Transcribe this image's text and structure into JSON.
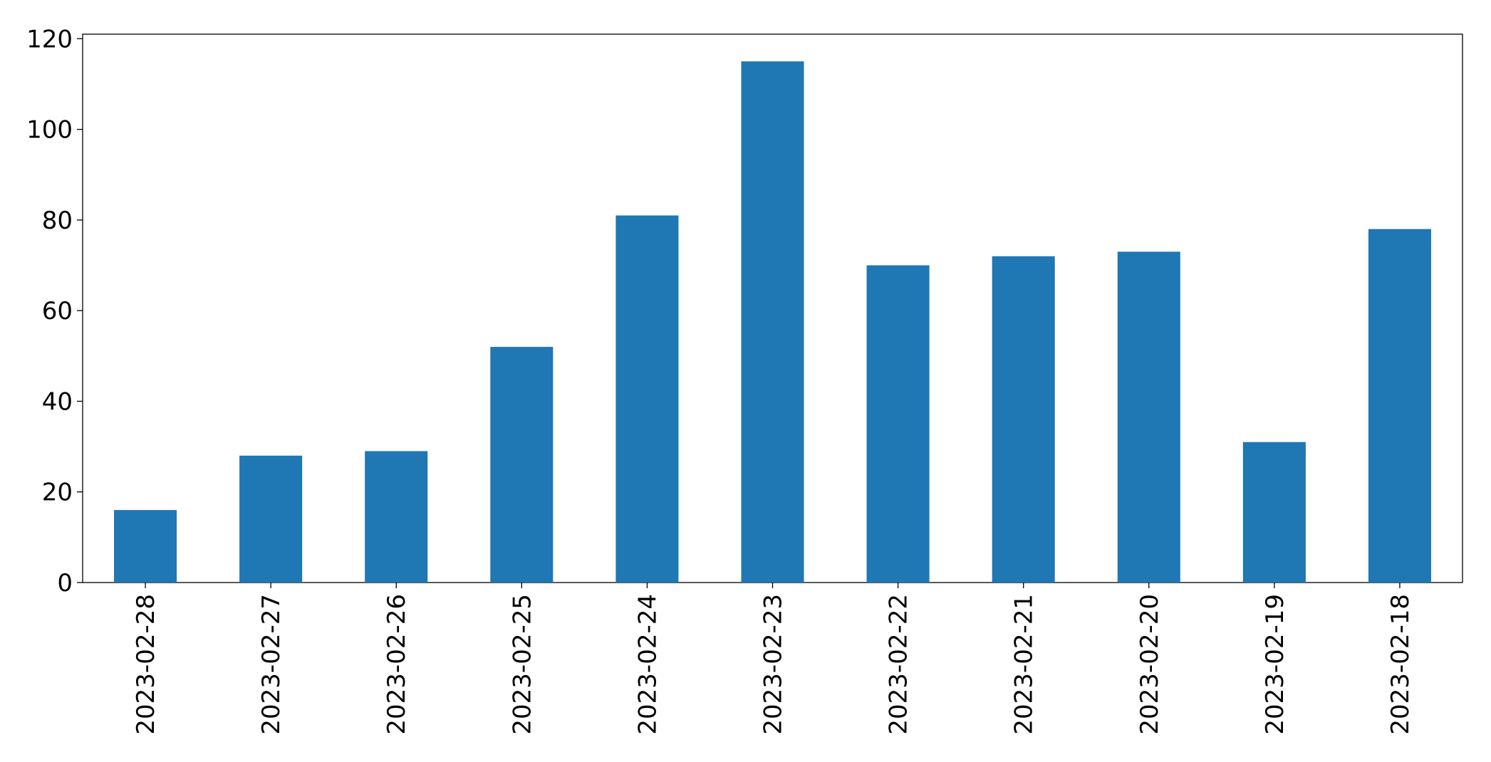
{
  "chart_data": {
    "type": "bar",
    "categories": [
      "2023-02-28",
      "2023-02-27",
      "2023-02-26",
      "2023-02-25",
      "2023-02-24",
      "2023-02-23",
      "2023-02-22",
      "2023-02-21",
      "2023-02-20",
      "2023-02-19",
      "2023-02-18"
    ],
    "values": [
      16,
      28,
      29,
      52,
      81,
      115,
      70,
      72,
      73,
      31,
      78
    ],
    "color": "#1f77b4",
    "ylim": [
      0,
      121
    ],
    "yticks": [
      0,
      20,
      40,
      60,
      80,
      100,
      120
    ],
    "grid": false
  }
}
